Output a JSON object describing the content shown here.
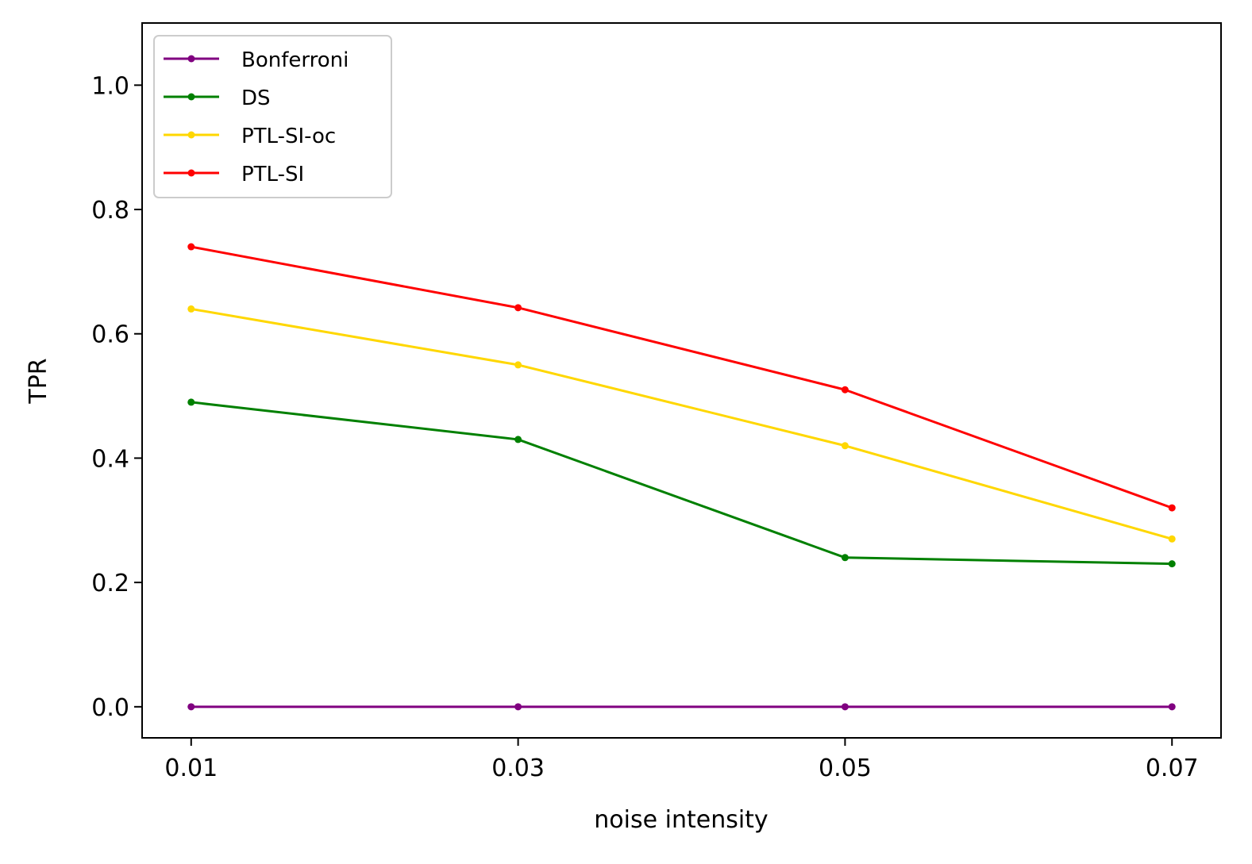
{
  "chart_data": {
    "type": "line",
    "title": "",
    "xlabel": "noise intensity",
    "ylabel": "TPR",
    "x": [
      0.01,
      0.03,
      0.05,
      0.07
    ],
    "x_tick_labels": [
      "0.01",
      "0.03",
      "0.05",
      "0.07"
    ],
    "xlim": [
      0.007,
      0.073
    ],
    "ylim": [
      -0.05,
      1.1
    ],
    "y_ticks": [
      0.0,
      0.2,
      0.4,
      0.6,
      0.8,
      1.0
    ],
    "y_tick_labels": [
      "0.0",
      "0.2",
      "0.4",
      "0.6",
      "0.8",
      "1.0"
    ],
    "grid": false,
    "legend_position": "top-left",
    "series": [
      {
        "name": "Bonferroni",
        "color": "#800080",
        "values": [
          0.0,
          0.0,
          0.0,
          0.0
        ]
      },
      {
        "name": "DS",
        "color": "#008000",
        "values": [
          0.49,
          0.43,
          0.24,
          0.23
        ]
      },
      {
        "name": "PTL-SI-oc",
        "color": "#FFD700",
        "values": [
          0.64,
          0.55,
          0.42,
          0.27
        ]
      },
      {
        "name": "PTL-SI",
        "color": "#FF0000",
        "values": [
          0.74,
          0.642,
          0.51,
          0.32
        ]
      }
    ]
  }
}
